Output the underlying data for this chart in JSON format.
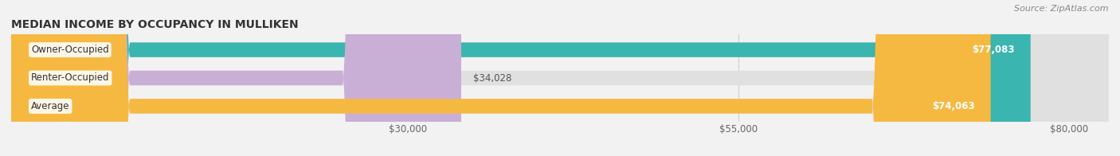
{
  "title": "MEDIAN INCOME BY OCCUPANCY IN MULLIKEN",
  "source": "Source: ZipAtlas.com",
  "categories": [
    "Owner-Occupied",
    "Renter-Occupied",
    "Average"
  ],
  "values": [
    77083,
    34028,
    74063
  ],
  "bar_colors": [
    "#3ab5b0",
    "#c9aed6",
    "#f5b942"
  ],
  "bar_labels": [
    "$77,083",
    "$34,028",
    "$74,063"
  ],
  "x_ticks": [
    30000,
    55000,
    80000
  ],
  "x_tick_labels": [
    "$30,000",
    "$55,000",
    "$80,000"
  ],
  "xlim_max": 83000,
  "background_color": "#f2f2f2",
  "bar_bg_color": "#e0e0e0",
  "title_fontsize": 10,
  "source_fontsize": 8,
  "tick_fontsize": 8.5,
  "label_fontsize": 8.5,
  "cat_fontsize": 8.5
}
